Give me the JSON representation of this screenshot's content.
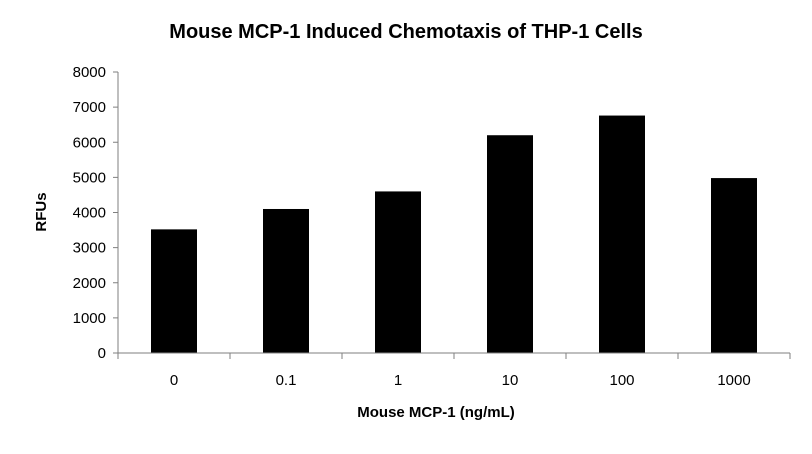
{
  "chart_data": {
    "type": "bar",
    "title": "Mouse MCP-1 Induced Chemotaxis of THP-1 Cells",
    "xlabel": "Mouse MCP-1 (ng/mL)",
    "ylabel": "RFUs",
    "categories": [
      "0",
      "0.1",
      "1",
      "10",
      "100",
      "1000"
    ],
    "values": [
      3520,
      4100,
      4600,
      6200,
      6760,
      4980
    ],
    "ylim": [
      0,
      8000
    ],
    "yticks": [
      0,
      1000,
      2000,
      3000,
      4000,
      5000,
      6000,
      7000,
      8000
    ],
    "grid": false,
    "legend": "none",
    "bar_color": "#000000"
  }
}
